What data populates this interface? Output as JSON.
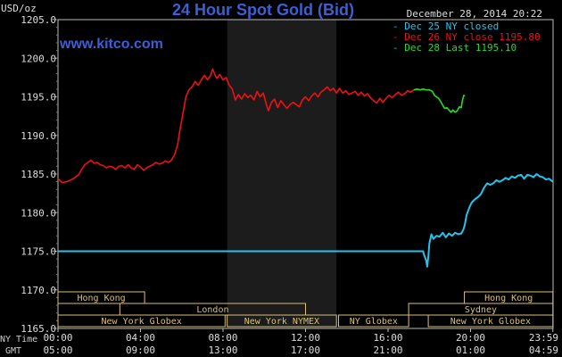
{
  "chart_data": {
    "type": "line",
    "title": "24 Hour Spot Gold (Bid)",
    "ylabel": "USD/oz",
    "website": "www.kitco.com",
    "date_label": "December 28, 2014 20:22",
    "ylim": [
      1165.0,
      1205.0
    ],
    "y_ticks": [
      "1205.0",
      "1200.0",
      "1195.0",
      "1190.0",
      "1185.0",
      "1180.0",
      "1175.0",
      "1170.0",
      "1165.0"
    ],
    "x_range_hours": [
      0,
      24
    ],
    "x_ticks_ny": [
      "00:00",
      "04:00",
      "08:00",
      "12:00",
      "16:00",
      "20:00",
      "23:59"
    ],
    "x_ticks_gmt": [
      "05:00",
      "09:00",
      "13:00",
      "17:00",
      "21:00",
      "01:00",
      "04:59"
    ],
    "x_row_label_ny": "NY Time",
    "x_row_label_gmt": "GMT",
    "shaded_hours": [
      8.2,
      13.5
    ],
    "colors": {
      "bg": "#000000",
      "axis": "#bbbbbb",
      "title": "#3d5fd6",
      "website": "#3d5fd6",
      "session": "#d8c078",
      "shade": "#1c1c1c",
      "dec25": "#22c4ee",
      "dec26": "#ee1111",
      "dec28": "#22dd22"
    },
    "legend": [
      {
        "label": "- Dec 25 NY closed",
        "color": "#22c4ee"
      },
      {
        "label": "- Dec 26 NY close 1195.80",
        "color": "#ee1111"
      },
      {
        "label": "- Dec 28 Last 1195.10",
        "color": "#22dd22"
      }
    ],
    "series": [
      {
        "name": "Dec 25 NY closed",
        "color": "#22c4ee",
        "points": [
          [
            0,
            1175.0
          ],
          [
            17.7,
            1175.0
          ],
          [
            17.75,
            1174.5
          ],
          [
            17.85,
            1173.8
          ],
          [
            17.9,
            1173.0
          ],
          [
            17.95,
            1174.2
          ],
          [
            18.0,
            1176.0
          ],
          [
            18.1,
            1177.2
          ],
          [
            18.2,
            1176.6
          ],
          [
            18.35,
            1177.0
          ],
          [
            18.5,
            1176.9
          ],
          [
            18.65,
            1177.4
          ],
          [
            18.8,
            1176.8
          ],
          [
            18.95,
            1177.3
          ],
          [
            19.1,
            1177.0
          ],
          [
            19.25,
            1177.4
          ],
          [
            19.4,
            1177.2
          ],
          [
            19.55,
            1177.3
          ],
          [
            19.65,
            1177.8
          ],
          [
            19.72,
            1178.4
          ],
          [
            19.8,
            1179.6
          ],
          [
            19.85,
            1180.0
          ],
          [
            19.95,
            1180.7
          ],
          [
            20.05,
            1181.3
          ],
          [
            20.2,
            1181.7
          ],
          [
            20.35,
            1182.0
          ],
          [
            20.5,
            1182.4
          ],
          [
            20.65,
            1183.2
          ],
          [
            20.8,
            1183.8
          ],
          [
            20.95,
            1183.6
          ],
          [
            21.1,
            1183.8
          ],
          [
            21.25,
            1184.2
          ],
          [
            21.4,
            1184.0
          ],
          [
            21.55,
            1184.2
          ],
          [
            21.7,
            1184.5
          ],
          [
            21.85,
            1184.3
          ],
          [
            22.0,
            1184.7
          ],
          [
            22.15,
            1184.5
          ],
          [
            22.3,
            1184.8
          ],
          [
            22.45,
            1184.9
          ],
          [
            22.6,
            1184.4
          ],
          [
            22.75,
            1184.9
          ],
          [
            22.9,
            1184.8
          ],
          [
            23.05,
            1184.6
          ],
          [
            23.2,
            1185.0
          ],
          [
            23.35,
            1184.7
          ],
          [
            23.5,
            1184.6
          ],
          [
            23.65,
            1184.3
          ],
          [
            23.8,
            1184.4
          ],
          [
            23.99,
            1184.0
          ]
        ]
      },
      {
        "name": "Dec 26 NY close 1195.80",
        "color": "#ee1111",
        "points": [
          [
            0,
            1184.4
          ],
          [
            0.2,
            1183.9
          ],
          [
            0.4,
            1184.0
          ],
          [
            0.6,
            1184.2
          ],
          [
            0.8,
            1184.5
          ],
          [
            1.0,
            1184.9
          ],
          [
            1.15,
            1185.6
          ],
          [
            1.3,
            1186.2
          ],
          [
            1.45,
            1186.5
          ],
          [
            1.6,
            1186.8
          ],
          [
            1.75,
            1186.4
          ],
          [
            1.9,
            1186.5
          ],
          [
            2.05,
            1186.2
          ],
          [
            2.2,
            1186.1
          ],
          [
            2.35,
            1185.8
          ],
          [
            2.5,
            1186.0
          ],
          [
            2.65,
            1185.9
          ],
          [
            2.8,
            1185.6
          ],
          [
            2.95,
            1186.0
          ],
          [
            3.1,
            1186.1
          ],
          [
            3.25,
            1185.8
          ],
          [
            3.4,
            1186.2
          ],
          [
            3.55,
            1185.8
          ],
          [
            3.7,
            1185.6
          ],
          [
            3.85,
            1186.2
          ],
          [
            4.0,
            1185.9
          ],
          [
            4.15,
            1185.5
          ],
          [
            4.3,
            1185.8
          ],
          [
            4.45,
            1186.0
          ],
          [
            4.6,
            1186.2
          ],
          [
            4.75,
            1186.5
          ],
          [
            4.9,
            1186.3
          ],
          [
            5.05,
            1186.4
          ],
          [
            5.2,
            1186.7
          ],
          [
            5.35,
            1186.5
          ],
          [
            5.5,
            1186.8
          ],
          [
            5.65,
            1187.5
          ],
          [
            5.8,
            1188.8
          ],
          [
            5.9,
            1190.5
          ],
          [
            6.0,
            1192.0
          ],
          [
            6.1,
            1193.5
          ],
          [
            6.2,
            1195.0
          ],
          [
            6.35,
            1195.9
          ],
          [
            6.5,
            1196.3
          ],
          [
            6.65,
            1197.0
          ],
          [
            6.8,
            1196.5
          ],
          [
            6.95,
            1197.2
          ],
          [
            7.1,
            1197.8
          ],
          [
            7.25,
            1197.2
          ],
          [
            7.4,
            1197.8
          ],
          [
            7.5,
            1198.6
          ],
          [
            7.6,
            1197.9
          ],
          [
            7.7,
            1197.4
          ],
          [
            7.85,
            1197.9
          ],
          [
            8.0,
            1197.2
          ],
          [
            8.15,
            1197.5
          ],
          [
            8.3,
            1196.5
          ],
          [
            8.45,
            1196.0
          ],
          [
            8.6,
            1194.6
          ],
          [
            8.75,
            1195.3
          ],
          [
            8.9,
            1194.7
          ],
          [
            9.05,
            1195.4
          ],
          [
            9.2,
            1194.9
          ],
          [
            9.35,
            1195.2
          ],
          [
            9.5,
            1194.6
          ],
          [
            9.65,
            1195.7
          ],
          [
            9.8,
            1195.0
          ],
          [
            9.95,
            1195.5
          ],
          [
            10.1,
            1194.0
          ],
          [
            10.2,
            1193.2
          ],
          [
            10.35,
            1194.3
          ],
          [
            10.5,
            1194.7
          ],
          [
            10.65,
            1193.6
          ],
          [
            10.8,
            1194.5
          ],
          [
            10.95,
            1194.0
          ],
          [
            11.1,
            1193.5
          ],
          [
            11.25,
            1194.0
          ],
          [
            11.4,
            1194.3
          ],
          [
            11.55,
            1194.0
          ],
          [
            11.7,
            1193.7
          ],
          [
            11.85,
            1194.6
          ],
          [
            12.0,
            1195.0
          ],
          [
            12.15,
            1194.5
          ],
          [
            12.3,
            1195.1
          ],
          [
            12.45,
            1195.5
          ],
          [
            12.6,
            1195.0
          ],
          [
            12.75,
            1195.6
          ],
          [
            12.9,
            1195.9
          ],
          [
            13.05,
            1196.3
          ],
          [
            13.2,
            1195.8
          ],
          [
            13.35,
            1196.1
          ],
          [
            13.5,
            1195.5
          ],
          [
            13.65,
            1196.1
          ],
          [
            13.8,
            1195.5
          ],
          [
            13.95,
            1195.8
          ],
          [
            14.1,
            1195.3
          ],
          [
            14.25,
            1195.5
          ],
          [
            14.4,
            1195.7
          ],
          [
            14.55,
            1195.2
          ],
          [
            14.7,
            1195.6
          ],
          [
            14.85,
            1195.1
          ],
          [
            15.0,
            1195.4
          ],
          [
            15.15,
            1194.9
          ],
          [
            15.3,
            1194.5
          ],
          [
            15.45,
            1194.2
          ],
          [
            15.6,
            1194.8
          ],
          [
            15.75,
            1194.3
          ],
          [
            15.9,
            1194.8
          ],
          [
            16.05,
            1195.2
          ],
          [
            16.2,
            1194.9
          ],
          [
            16.35,
            1195.3
          ],
          [
            16.5,
            1195.6
          ],
          [
            16.65,
            1195.2
          ],
          [
            16.8,
            1195.4
          ],
          [
            16.95,
            1195.8
          ],
          [
            17.1,
            1195.6
          ],
          [
            17.25,
            1195.9
          ]
        ]
      },
      {
        "name": "Dec 28 Last 1195.10",
        "color": "#22dd22",
        "points": [
          [
            17.25,
            1195.9
          ],
          [
            17.4,
            1196.0
          ],
          [
            17.55,
            1195.9
          ],
          [
            17.7,
            1196.0
          ],
          [
            17.85,
            1195.9
          ],
          [
            18.0,
            1195.9
          ],
          [
            18.15,
            1195.7
          ],
          [
            18.25,
            1195.2
          ],
          [
            18.35,
            1195.0
          ],
          [
            18.45,
            1194.8
          ],
          [
            18.55,
            1194.4
          ],
          [
            18.65,
            1193.9
          ],
          [
            18.75,
            1193.5
          ],
          [
            18.85,
            1193.6
          ],
          [
            18.95,
            1193.3
          ],
          [
            19.05,
            1193.0
          ],
          [
            19.15,
            1193.3
          ],
          [
            19.25,
            1193.0
          ],
          [
            19.35,
            1193.2
          ],
          [
            19.45,
            1193.7
          ],
          [
            19.55,
            1193.6
          ],
          [
            19.6,
            1194.5
          ],
          [
            19.67,
            1195.2
          ],
          [
            19.72,
            1195.1
          ]
        ]
      }
    ],
    "session_bars": [
      {
        "label": "Hong Kong",
        "row": 0,
        "start_h": 0,
        "end_h": 4.2
      },
      {
        "label": "London",
        "row": 1,
        "start_h": 3.0,
        "end_h": 12.0
      },
      {
        "label": "New York Globex",
        "row": 2,
        "start_h": 0,
        "end_h": 8.1
      },
      {
        "label": "New York NYMEX",
        "row": 2,
        "start_h": 8.2,
        "end_h": 13.5
      },
      {
        "label": "NY Globex",
        "row": 2,
        "start_h": 13.6,
        "end_h": 17.0
      },
      {
        "label": "Hong Kong",
        "row": 0,
        "start_h": 19.7,
        "end_h": 23.99
      },
      {
        "label": "Sydney",
        "row": 1,
        "start_h": 17.0,
        "end_h": 23.99
      },
      {
        "label": "New York Globex",
        "row": 2,
        "start_h": 17.95,
        "end_h": 23.99
      }
    ]
  }
}
